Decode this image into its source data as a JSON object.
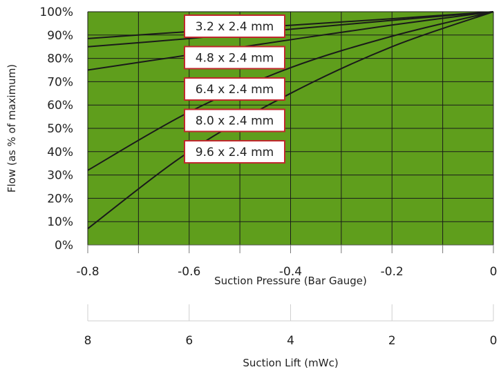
{
  "chart_data": {
    "type": "line",
    "xlabel": "Suction Pressure (Bar Gauge)",
    "ylabel": "Flow (as % of maximum)",
    "xlim": [
      -0.8,
      0
    ],
    "ylim": [
      0,
      100
    ],
    "x_ticks": [
      "-0.8",
      "-0.6",
      "-0.4",
      "-0.2",
      "0"
    ],
    "y_ticks": [
      "0%",
      "10%",
      "20%",
      "30%",
      "40%",
      "50%",
      "60%",
      "70%",
      "80%",
      "90%",
      "100%"
    ],
    "grid": true,
    "plot_background": "#5f9e1c",
    "line_color": "#1a1a1a",
    "secondary_axis": {
      "label": "Suction Lift (mWc)",
      "ticks": [
        "8",
        "6",
        "4",
        "2",
        "0"
      ],
      "values": [
        8,
        6,
        4,
        2,
        0
      ]
    },
    "series": [
      {
        "name": "3.2 x 2.4 mm",
        "x": [
          -0.8,
          -0.6,
          -0.4,
          -0.2,
          0
        ],
        "values": [
          88.5,
          91.5,
          94.2,
          97,
          100
        ]
      },
      {
        "name": "4.8 x 2.4 mm",
        "x": [
          -0.8,
          -0.6,
          -0.4,
          -0.2,
          0
        ],
        "values": [
          85,
          88.5,
          92.5,
          96.3,
          100
        ]
      },
      {
        "name": "6.4 x 2.4 mm",
        "x": [
          -0.8,
          -0.6,
          -0.4,
          -0.2,
          0
        ],
        "values": [
          75,
          81.5,
          88,
          94.3,
          100
        ]
      },
      {
        "name": "8.0 x 2.4 mm",
        "x": [
          -0.8,
          -0.6,
          -0.4,
          -0.2,
          0
        ],
        "values": [
          32,
          57,
          76,
          89.5,
          100
        ]
      },
      {
        "name": "9.6 x 2.4 mm",
        "x": [
          -0.8,
          -0.6,
          -0.4,
          -0.2,
          0
        ],
        "values": [
          7,
          40,
          65,
          85,
          100
        ]
      }
    ]
  }
}
